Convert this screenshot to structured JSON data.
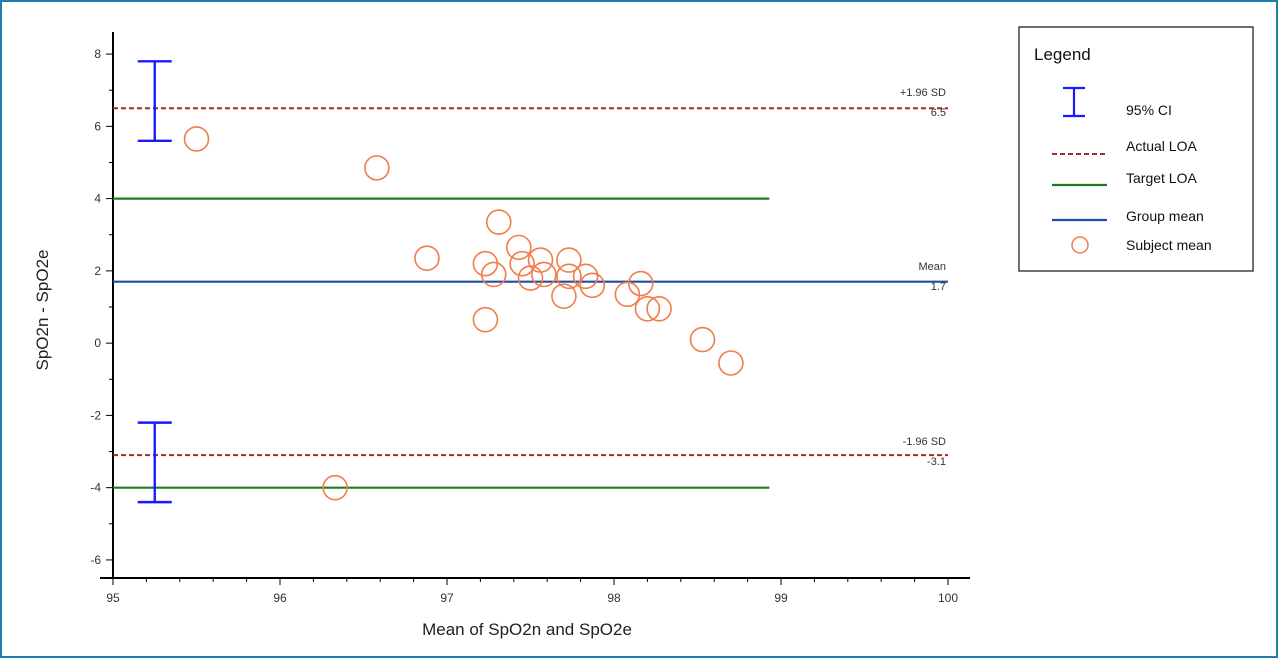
{
  "chart_data": {
    "type": "scatter",
    "title": "",
    "xlabel": "Mean of SpO2n and SpO2e",
    "ylabel": "SpO2n - SpO2e",
    "xlim": [
      95,
      100
    ],
    "ylim": [
      -6.5,
      8.5
    ],
    "x_ticks": [
      "95",
      "96",
      "97",
      "98",
      "99",
      "100"
    ],
    "y_ticks": [
      "8",
      "6",
      "4",
      "2",
      "0",
      "-2",
      "-4",
      "-6"
    ],
    "colors": {
      "actual_loa": "#a52a2a",
      "target_loa": "#1e7b1e",
      "group_mean": "#1f4fa0",
      "ci": "#1a1aff",
      "subject": "#f07d4a"
    },
    "mean": {
      "value": 1.7,
      "label": "Mean",
      "value_label": "1.7"
    },
    "upper_loa": {
      "value": 6.5,
      "label": "+1.96 SD",
      "value_label": "6.5",
      "ci": [
        5.6,
        7.8
      ]
    },
    "lower_loa": {
      "value": -3.1,
      "label": "-1.96 SD",
      "value_label": "-3.1",
      "ci": [
        -4.4,
        -2.2
      ]
    },
    "ci_x": 95.25,
    "target_loa": {
      "upper": 4,
      "lower": -4,
      "x_end": 98.93
    },
    "points": [
      {
        "x": 95.5,
        "y": 5.65
      },
      {
        "x": 96.58,
        "y": 4.85
      },
      {
        "x": 96.88,
        "y": 2.35
      },
      {
        "x": 97.23,
        "y": 2.2
      },
      {
        "x": 97.28,
        "y": 1.9
      },
      {
        "x": 97.23,
        "y": 0.65
      },
      {
        "x": 97.31,
        "y": 3.35
      },
      {
        "x": 97.43,
        "y": 2.65
      },
      {
        "x": 97.45,
        "y": 2.2
      },
      {
        "x": 97.5,
        "y": 1.8
      },
      {
        "x": 97.56,
        "y": 2.3
      },
      {
        "x": 97.58,
        "y": 1.9
      },
      {
        "x": 97.7,
        "y": 1.3
      },
      {
        "x": 97.73,
        "y": 2.3
      },
      {
        "x": 97.73,
        "y": 1.85
      },
      {
        "x": 97.83,
        "y": 1.85
      },
      {
        "x": 97.87,
        "y": 1.6
      },
      {
        "x": 98.08,
        "y": 1.35
      },
      {
        "x": 98.16,
        "y": 1.65
      },
      {
        "x": 98.2,
        "y": 0.95
      },
      {
        "x": 98.27,
        "y": 0.95
      },
      {
        "x": 98.53,
        "y": 0.1
      },
      {
        "x": 98.7,
        "y": -0.55
      },
      {
        "x": 96.33,
        "y": -4.0
      }
    ],
    "legend": {
      "title": "Legend",
      "position": "top-right",
      "items": [
        "95% CI",
        "Actual LOA",
        "Target LOA",
        "Group mean",
        "Subject mean"
      ]
    }
  }
}
